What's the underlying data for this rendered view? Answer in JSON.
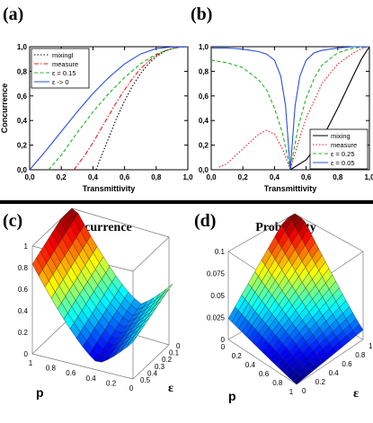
{
  "panels": {
    "a": {
      "label": "(a)"
    },
    "b": {
      "label": "(b)"
    },
    "c": {
      "label": "(c)",
      "title": "Concurrence"
    },
    "d": {
      "label": "(d)",
      "title": "Probability"
    }
  },
  "chart_data": [
    {
      "type": "line",
      "panel": "a",
      "xlabel": "Transmittivity",
      "ylabel": "Concurrence",
      "xlim": [
        0,
        1
      ],
      "ylim": [
        0,
        1
      ],
      "xticks": [
        "0,0",
        "0,2",
        "0,4",
        "0,6",
        "0,8",
        "1,0"
      ],
      "yticks": [
        "0,0",
        "0,2",
        "0,4",
        "0,6",
        "0,8",
        "1,0"
      ],
      "legend_position": "top-left",
      "series": [
        {
          "name": "mixingI",
          "color": "#000000",
          "dash": "1.5,2",
          "x": [
            0.42,
            0.45,
            0.5,
            0.55,
            0.6,
            0.65,
            0.7,
            0.75,
            0.8,
            0.85,
            0.9,
            0.95,
            1.0
          ],
          "y": [
            0,
            0.1,
            0.26,
            0.42,
            0.56,
            0.68,
            0.78,
            0.86,
            0.92,
            0.96,
            0.985,
            0.997,
            1.0
          ]
        },
        {
          "name": "measure",
          "color": "#e8191e",
          "dash": "5,2,1.5,2",
          "x": [
            0.28,
            0.35,
            0.4,
            0.45,
            0.5,
            0.55,
            0.6,
            0.65,
            0.7,
            0.75,
            0.8,
            0.85,
            0.9,
            0.95,
            1.0
          ],
          "y": [
            0,
            0.12,
            0.22,
            0.33,
            0.44,
            0.55,
            0.65,
            0.74,
            0.82,
            0.88,
            0.93,
            0.965,
            0.985,
            0.996,
            1.0
          ]
        },
        {
          "name": "ε = 0.15",
          "color": "#22b422",
          "dash": "4,2.5",
          "x": [
            0.12,
            0.2,
            0.3,
            0.4,
            0.5,
            0.6,
            0.7,
            0.8,
            0.9,
            0.95,
            1.0
          ],
          "y": [
            0,
            0.12,
            0.3,
            0.47,
            0.62,
            0.75,
            0.86,
            0.94,
            0.985,
            0.996,
            1.0
          ]
        },
        {
          "name": "ε -> 0",
          "color": "#2a4ee0",
          "dash": "",
          "x": [
            0,
            0.1,
            0.2,
            0.3,
            0.4,
            0.5,
            0.6,
            0.7,
            0.8,
            0.9,
            1.0
          ],
          "y": [
            0,
            0.15,
            0.31,
            0.47,
            0.62,
            0.75,
            0.86,
            0.94,
            0.985,
            0.998,
            1.0
          ]
        }
      ]
    },
    {
      "type": "line",
      "panel": "b",
      "xlabel": "Transmittivity",
      "ylabel": "",
      "xlim": [
        0,
        1
      ],
      "ylim": [
        0,
        1
      ],
      "xticks": [
        "0,0",
        "0,2",
        "0,4",
        "0,6",
        "0,8",
        "1,0"
      ],
      "yticks": [
        "0,0",
        "0,2",
        "0,4",
        "0,6",
        "0,8",
        "1,0"
      ],
      "legend_position": "bottom-right",
      "series": [
        {
          "name": "mixing",
          "color": "#000000",
          "dash": "",
          "x": [
            0.5,
            0.6,
            0.7,
            0.8,
            0.9,
            0.95,
            1.0
          ],
          "y": [
            0,
            0.08,
            0.25,
            0.5,
            0.77,
            0.9,
            1.0
          ]
        },
        {
          "name": "measure",
          "color": "#e8191e",
          "dash": "1.5,2",
          "x": [
            0.05,
            0.1,
            0.2,
            0.3,
            0.35,
            0.4,
            0.45,
            0.5,
            0.55,
            0.6,
            0.7,
            0.8,
            0.9,
            0.95,
            1.0
          ],
          "y": [
            0.02,
            0.05,
            0.17,
            0.29,
            0.32,
            0.29,
            0.17,
            0,
            0.22,
            0.42,
            0.7,
            0.86,
            0.95,
            0.985,
            1.0
          ]
        },
        {
          "name": "ε = 0.25",
          "color": "#22b422",
          "dash": "4,2.5",
          "x": [
            0,
            0.1,
            0.2,
            0.3,
            0.35,
            0.4,
            0.45,
            0.5,
            0.55,
            0.6,
            0.65,
            0.7,
            0.8,
            0.9,
            1.0
          ],
          "y": [
            0.89,
            0.87,
            0.83,
            0.73,
            0.65,
            0.5,
            0.3,
            0,
            0.35,
            0.58,
            0.74,
            0.85,
            0.95,
            0.99,
            1.0
          ]
        },
        {
          "name": "ε = 0.05",
          "color": "#2a4ee0",
          "dash": "",
          "x": [
            0,
            0.1,
            0.2,
            0.3,
            0.35,
            0.4,
            0.44,
            0.47,
            0.5,
            0.53,
            0.56,
            0.6,
            0.65,
            0.7,
            0.8,
            0.9,
            1.0
          ],
          "y": [
            0.99,
            0.99,
            0.98,
            0.96,
            0.94,
            0.89,
            0.76,
            0.52,
            0,
            0.52,
            0.76,
            0.89,
            0.95,
            0.97,
            0.99,
            1.0,
            1.0
          ]
        }
      ]
    },
    {
      "type": "surface",
      "panel": "c",
      "title": "Concurrence",
      "xlabel": "p",
      "ylabel": "ε",
      "zlim": [
        0,
        1
      ],
      "xticks": [
        "1",
        "0.8",
        "0.6",
        "0.4",
        "0.2",
        "0"
      ],
      "yticks": [
        "0",
        "0.1",
        "0.2",
        "0.3",
        "0.4",
        "0.5"
      ],
      "zticks": [
        "1",
        "0.8",
        "0.6",
        "0.4",
        "0.2",
        "0"
      ],
      "colormap": "jet"
    },
    {
      "type": "surface",
      "panel": "d",
      "title": "Probability",
      "xlabel": "p",
      "ylabel": "ε",
      "zlim": [
        0,
        0.1
      ],
      "xticks": [
        "0",
        "0.2",
        "0.4",
        "0.6",
        "0.8",
        "1"
      ],
      "yticks": [
        "0",
        "0.2",
        "0.4",
        "0.6",
        "0.8",
        "1"
      ],
      "zticks": [
        "0.1",
        "0.075",
        "0.05",
        "0.025",
        "0"
      ],
      "colormap": "jet"
    }
  ]
}
